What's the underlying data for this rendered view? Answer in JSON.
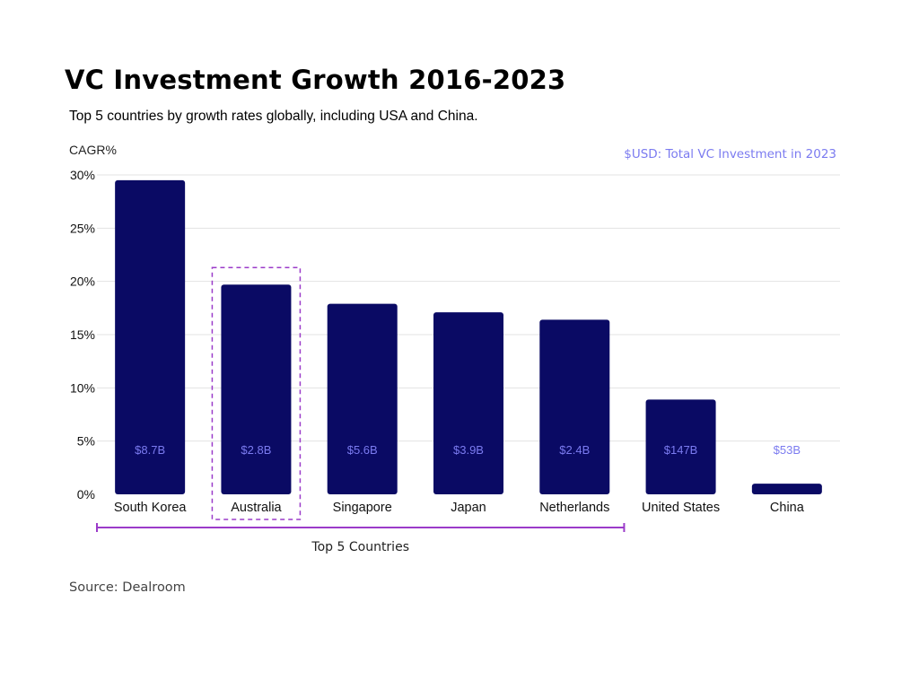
{
  "title": "VC Investment Growth 2016-2023",
  "subtitle": "Top 5 countries by growth rates globally, including USA and China.",
  "source": "Source: Dealroom",
  "colors": {
    "bar": "#0a0a64",
    "data_label": "#7b7bf0",
    "highlight": "#9b3bc9",
    "grid": "#e3e3e3"
  },
  "chart_data": {
    "type": "bar",
    "ylabel": "CAGR%",
    "note": "$USD: Total VC Investment in 2023",
    "ylim": [
      0,
      30
    ],
    "yticks": [
      "0%",
      "5%",
      "10%",
      "15%",
      "20%",
      "25%",
      "30%"
    ],
    "ytick_values": [
      0,
      5,
      10,
      15,
      20,
      25,
      30
    ],
    "grid": true,
    "categories": [
      "South Korea",
      "Australia",
      "Singapore",
      "Japan",
      "Netherlands",
      "United States",
      "China"
    ],
    "values": [
      29.5,
      19.7,
      17.9,
      17.1,
      16.4,
      8.9,
      1.0
    ],
    "data_labels": [
      "$8.7B",
      "$2.8B",
      "$5.6B",
      "$3.9B",
      "$2.4B",
      "$147B",
      "$53B"
    ],
    "highlighted_category": "Australia",
    "group_bracket": {
      "label": "Top 5 Countries",
      "from": "South Korea",
      "to": "Netherlands"
    }
  }
}
